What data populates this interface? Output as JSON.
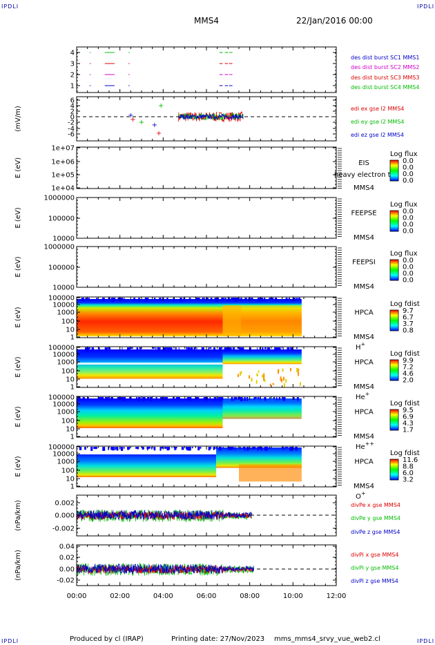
{
  "corner_label": "IPDLI",
  "header": {
    "spacecraft": "MMS4",
    "date_time": "22/Jan/2016 00:00"
  },
  "footer": {
    "produced_by": "Produced by cl (IRAP)",
    "printing_date": "Printing date: 27/Nov/2023",
    "script_name": "mms_mms4_srvy_vue_web2.cl"
  },
  "colors": {
    "red": "#dd0000",
    "green": "#00bb00",
    "blue": "#0000cc",
    "magenta": "#cc00cc"
  },
  "chart_data": {
    "type": "multi-panel time series / spectrogram",
    "x_ticks": [
      "00:00",
      "02:00",
      "04:00",
      "06:00",
      "08:00",
      "10:00",
      "12:00"
    ],
    "x_range_hours": [
      0,
      12
    ],
    "panels": [
      {
        "id": "burst",
        "type": "line",
        "ylabel": "",
        "y_ticks": [
          "1",
          "2",
          "3",
          "4"
        ],
        "legend": [
          "des dist burst SC1 MMS1",
          "des dist burst SC2 MMS2",
          "des dist burst SC3 MMS3",
          "des dist burst SC4 MMS4"
        ]
      },
      {
        "id": "efield",
        "type": "line",
        "ylabel": "(mV/m)",
        "y_ticks": [
          "-6",
          "-4",
          "-2",
          "0",
          "2",
          "4",
          "6"
        ],
        "legend": [
          "edi ex gse l2 MMS4",
          "edi ey gse l2 MMS4",
          "edi ez gse l2 MMS4"
        ]
      },
      {
        "id": "eis",
        "type": "heatmap",
        "ylabel": "E (eV)",
        "y_ticks": [
          "1e+07",
          "1e+06",
          "1e+05",
          "1e+04"
        ],
        "instrument": [
          "EIS",
          "MMS4"
        ],
        "overlay_text": "heavy electron to",
        "cbar_title": "Log flux",
        "cbar_ticks": [
          "0.0",
          "0.0",
          "0.0",
          "0.0"
        ]
      },
      {
        "id": "feepse",
        "type": "heatmap",
        "ylabel": "E (eV)",
        "y_ticks": [
          "1000000",
          "100000",
          "10000"
        ],
        "instrument": [
          "FEEPSE",
          "MMS4"
        ],
        "cbar_title": "Log flux",
        "cbar_ticks": [
          "0.0",
          "0.0",
          "0.0",
          "0.0"
        ]
      },
      {
        "id": "feepsi",
        "type": "heatmap",
        "ylabel": "E (eV)",
        "y_ticks": [
          "1000000",
          "100000",
          "10000"
        ],
        "instrument": [
          "FEEPSI",
          "MMS4"
        ],
        "cbar_title": "Log flux",
        "cbar_ticks": [
          "0.0",
          "0.0",
          "0.0",
          "0.0"
        ]
      },
      {
        "id": "hpca_h",
        "type": "heatmap",
        "ylabel": "E (eV)",
        "y_ticks": [
          "100000",
          "10000",
          "1000",
          "100",
          "10",
          "1"
        ],
        "instrument": [
          "HPCA",
          "MMS4"
        ],
        "species": "H",
        "species_charge": "+",
        "cbar_title": "Log fdist",
        "cbar_ticks": [
          "9.7",
          "6.7",
          "3.7",
          "0.8"
        ]
      },
      {
        "id": "hpca_he",
        "type": "heatmap",
        "ylabel": "E (eV)",
        "y_ticks": [
          "100000",
          "10000",
          "1000",
          "100",
          "10",
          "1"
        ],
        "instrument": [
          "HPCA",
          "MMS4"
        ],
        "species": "He",
        "species_charge": "+",
        "cbar_title": "Log fdist",
        "cbar_ticks": [
          "9.9",
          "7.2",
          "4.6",
          "2.0"
        ]
      },
      {
        "id": "hpca_hepp",
        "type": "heatmap",
        "ylabel": "E (eV)",
        "y_ticks": [
          "100000",
          "10000",
          "1000",
          "100",
          "10",
          "1"
        ],
        "instrument": [
          "HPCA",
          "MMS4"
        ],
        "species": "He",
        "species_charge": "++",
        "cbar_title": "Log fdist",
        "cbar_ticks": [
          "9.5",
          "6.9",
          "4.3",
          "1.7"
        ]
      },
      {
        "id": "hpca_o",
        "type": "heatmap",
        "ylabel": "E (eV)",
        "y_ticks": [
          "100000",
          "10000",
          "1000",
          "100",
          "10",
          "1"
        ],
        "instrument": [
          "HPCA",
          "MMS4"
        ],
        "species": "O",
        "species_charge": "+",
        "cbar_title": "Log fdist",
        "cbar_ticks": [
          "11.6",
          "8.8",
          "6.0",
          "3.2"
        ]
      },
      {
        "id": "divpe",
        "type": "line",
        "ylabel": "(nPa/km)",
        "y_ticks": [
          "0.002",
          "0.000",
          "-0.002"
        ],
        "legend": [
          "divPe x gse MMS4",
          "divPe y gse MMS4",
          "divPe z gse MMS4"
        ]
      },
      {
        "id": "divpi",
        "type": "line",
        "ylabel": "(nPa/km)",
        "y_ticks": [
          "0.04",
          "0.02",
          "0.00",
          "-0.02"
        ],
        "legend": [
          "divPi x gse MMS4",
          "divPi y gse MMS4",
          "divPi z gse MMS4"
        ]
      }
    ]
  }
}
